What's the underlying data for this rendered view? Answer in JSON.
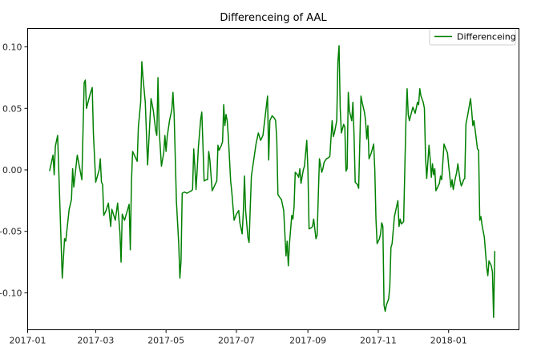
{
  "chart_data": {
    "type": "line",
    "title": "Differenceing of AAL",
    "xlabel": "",
    "ylabel": "",
    "x_axis": "date",
    "xlim": [
      "2017-01-01",
      "2018-03-03"
    ],
    "ylim": [
      -0.13,
      0.115
    ],
    "x_ticks": [
      "2017-01-01",
      "2017-03-01",
      "2017-05-01",
      "2017-07-01",
      "2017-09-01",
      "2017-11-01",
      "2018-01-01"
    ],
    "x_tick_labels": [
      "2017-01",
      "2017-03",
      "2017-05",
      "2017-07",
      "2017-09",
      "2017-11",
      "2018-01"
    ],
    "y_ticks": [
      -0.1,
      -0.05,
      0.0,
      0.05,
      0.1
    ],
    "y_tick_labels": [
      "-0.10",
      "-0.05",
      "0.00",
      "0.05",
      "0.10"
    ],
    "grid": false,
    "legend_position": "top-right",
    "series": [
      {
        "name": "Differenceing",
        "color": "#008000",
        "points": [
          [
            "2017-01-20",
            -0.001
          ],
          [
            "2017-01-23",
            0.012
          ],
          [
            "2017-01-24",
            -0.004
          ],
          [
            "2017-01-25",
            0.019
          ],
          [
            "2017-01-27",
            0.028
          ],
          [
            "2017-01-31",
            -0.088
          ],
          [
            "2017-02-02",
            -0.056
          ],
          [
            "2017-02-03",
            -0.058
          ],
          [
            "2017-02-06",
            -0.032
          ],
          [
            "2017-02-07",
            -0.028
          ],
          [
            "2017-02-08",
            -0.024
          ],
          [
            "2017-02-09",
            0.001
          ],
          [
            "2017-02-10",
            -0.014
          ],
          [
            "2017-02-13",
            0.012
          ],
          [
            "2017-02-17",
            -0.008
          ],
          [
            "2017-02-19",
            0.071
          ],
          [
            "2017-02-20",
            0.073
          ],
          [
            "2017-02-21",
            0.05
          ],
          [
            "2017-02-24",
            0.061
          ],
          [
            "2017-02-26",
            0.067
          ],
          [
            "2017-02-27",
            0.03
          ],
          [
            "2017-03-01",
            -0.01
          ],
          [
            "2017-03-04",
            0.0
          ],
          [
            "2017-03-05",
            0.009
          ],
          [
            "2017-03-06",
            -0.01
          ],
          [
            "2017-03-07",
            -0.012
          ],
          [
            "2017-03-08",
            -0.037
          ],
          [
            "2017-03-10",
            -0.033
          ],
          [
            "2017-03-12",
            -0.027
          ],
          [
            "2017-03-14",
            -0.046
          ],
          [
            "2017-03-15",
            -0.032
          ],
          [
            "2017-03-16",
            -0.035
          ],
          [
            "2017-03-18",
            -0.041
          ],
          [
            "2017-03-20",
            -0.027
          ],
          [
            "2017-03-22",
            -0.051
          ],
          [
            "2017-03-23",
            -0.075
          ],
          [
            "2017-03-24",
            -0.036
          ],
          [
            "2017-03-26",
            -0.041
          ],
          [
            "2017-03-30",
            -0.028
          ],
          [
            "2017-03-31",
            -0.065
          ],
          [
            "2017-04-01",
            -0.01
          ],
          [
            "2017-04-02",
            0.015
          ],
          [
            "2017-04-05",
            0.009
          ],
          [
            "2017-04-06",
            0.007
          ],
          [
            "2017-04-07",
            0.035
          ],
          [
            "2017-04-09",
            0.055
          ],
          [
            "2017-04-10",
            0.088
          ],
          [
            "2017-04-11",
            0.075
          ],
          [
            "2017-04-13",
            0.055
          ],
          [
            "2017-04-15",
            0.004
          ],
          [
            "2017-04-18",
            0.058
          ],
          [
            "2017-04-20",
            0.048
          ],
          [
            "2017-04-22",
            0.032
          ],
          [
            "2017-04-23",
            0.028
          ],
          [
            "2017-04-24",
            0.075
          ],
          [
            "2017-04-25",
            0.033
          ],
          [
            "2017-04-27",
            0.003
          ],
          [
            "2017-04-29",
            0.014
          ],
          [
            "2017-04-30",
            0.028
          ],
          [
            "2017-05-01",
            0.015
          ],
          [
            "2017-05-02",
            0.027
          ],
          [
            "2017-05-04",
            0.04
          ],
          [
            "2017-05-06",
            0.049
          ],
          [
            "2017-05-07",
            0.063
          ],
          [
            "2017-05-08",
            0.045
          ],
          [
            "2017-05-10",
            -0.026
          ],
          [
            "2017-05-12",
            -0.06
          ],
          [
            "2017-05-13",
            -0.088
          ],
          [
            "2017-05-14",
            -0.074
          ],
          [
            "2017-05-15",
            -0.019
          ],
          [
            "2017-05-17",
            -0.018
          ],
          [
            "2017-05-19",
            -0.019
          ],
          [
            "2017-05-21",
            -0.018
          ],
          [
            "2017-05-23",
            -0.017
          ],
          [
            "2017-05-24",
            -0.016
          ],
          [
            "2017-05-25",
            0.017
          ],
          [
            "2017-05-26",
            0.002
          ],
          [
            "2017-05-27",
            -0.016
          ],
          [
            "2017-05-28",
            0.0
          ],
          [
            "2017-05-29",
            0.018
          ],
          [
            "2017-05-31",
            0.041
          ],
          [
            "2017-06-01",
            0.047
          ],
          [
            "2017-06-02",
            0.02
          ],
          [
            "2017-06-03",
            -0.009
          ],
          [
            "2017-06-05",
            -0.008
          ],
          [
            "2017-06-06",
            -0.008
          ],
          [
            "2017-06-07",
            0.015
          ],
          [
            "2017-06-08",
            0.008
          ],
          [
            "2017-06-10",
            -0.017
          ],
          [
            "2017-06-13",
            -0.011
          ],
          [
            "2017-06-14",
            -0.009
          ],
          [
            "2017-06-15",
            0.02
          ],
          [
            "2017-06-16",
            0.016
          ],
          [
            "2017-06-18",
            0.02
          ],
          [
            "2017-06-19",
            0.023
          ],
          [
            "2017-06-20",
            0.053
          ],
          [
            "2017-06-21",
            0.036
          ],
          [
            "2017-06-22",
            0.045
          ],
          [
            "2017-06-23",
            0.04
          ],
          [
            "2017-06-24",
            0.027
          ],
          [
            "2017-06-26",
            -0.009
          ],
          [
            "2017-06-27",
            -0.018
          ],
          [
            "2017-06-29",
            -0.041
          ],
          [
            "2017-07-01",
            -0.036
          ],
          [
            "2017-07-03",
            -0.033
          ],
          [
            "2017-07-04",
            -0.043
          ],
          [
            "2017-07-06",
            -0.052
          ],
          [
            "2017-07-07",
            -0.034
          ],
          [
            "2017-07-08",
            -0.005
          ],
          [
            "2017-07-09",
            -0.033
          ],
          [
            "2017-07-11",
            -0.055
          ],
          [
            "2017-07-12",
            -0.059
          ],
          [
            "2017-07-13",
            -0.031
          ],
          [
            "2017-07-14",
            -0.005
          ],
          [
            "2017-07-16",
            0.008
          ],
          [
            "2017-07-18",
            0.021
          ],
          [
            "2017-07-20",
            0.03
          ],
          [
            "2017-07-21",
            0.027
          ],
          [
            "2017-07-22",
            0.024
          ],
          [
            "2017-07-24",
            0.028
          ],
          [
            "2017-07-26",
            0.044
          ],
          [
            "2017-07-27",
            0.052
          ],
          [
            "2017-07-28",
            0.06
          ],
          [
            "2017-07-29",
            0.008
          ],
          [
            "2017-07-30",
            0.04
          ],
          [
            "2017-08-01",
            0.044
          ],
          [
            "2017-08-03",
            0.042
          ],
          [
            "2017-08-04",
            0.04
          ],
          [
            "2017-08-05",
            0.025
          ],
          [
            "2017-08-06",
            -0.02
          ],
          [
            "2017-08-08",
            -0.023
          ],
          [
            "2017-08-09",
            -0.024
          ],
          [
            "2017-08-11",
            -0.033
          ],
          [
            "2017-08-13",
            -0.07
          ],
          [
            "2017-08-14",
            -0.058
          ],
          [
            "2017-08-15",
            -0.078
          ],
          [
            "2017-08-16",
            -0.06
          ],
          [
            "2017-08-18",
            -0.037
          ],
          [
            "2017-08-19",
            -0.04
          ],
          [
            "2017-08-20",
            -0.03
          ],
          [
            "2017-08-21",
            -0.002
          ],
          [
            "2017-08-23",
            -0.004
          ],
          [
            "2017-08-24",
            -0.006
          ],
          [
            "2017-08-25",
            0.001
          ],
          [
            "2017-08-26",
            -0.011
          ],
          [
            "2017-08-28",
            0.0
          ],
          [
            "2017-08-29",
            0.003
          ],
          [
            "2017-08-31",
            0.024
          ],
          [
            "2017-09-01",
            0.0
          ],
          [
            "2017-09-02",
            -0.048
          ],
          [
            "2017-09-04",
            -0.047
          ],
          [
            "2017-09-05",
            -0.046
          ],
          [
            "2017-09-06",
            -0.04
          ],
          [
            "2017-09-08",
            -0.056
          ],
          [
            "2017-09-09",
            -0.053
          ],
          [
            "2017-09-10",
            -0.021
          ],
          [
            "2017-09-11",
            0.009
          ],
          [
            "2017-09-13",
            -0.002
          ],
          [
            "2017-09-14",
            0.001
          ],
          [
            "2017-09-15",
            0.006
          ],
          [
            "2017-09-17",
            0.009
          ],
          [
            "2017-09-19",
            0.01
          ],
          [
            "2017-09-20",
            0.011
          ],
          [
            "2017-09-22",
            0.04
          ],
          [
            "2017-09-23",
            0.027
          ],
          [
            "2017-09-24",
            0.03
          ],
          [
            "2017-09-26",
            0.04
          ],
          [
            "2017-09-27",
            0.088
          ],
          [
            "2017-09-28",
            0.101
          ],
          [
            "2017-09-29",
            0.05
          ],
          [
            "2017-09-30",
            0.03
          ],
          [
            "2017-10-02",
            0.037
          ],
          [
            "2017-10-03",
            0.035
          ],
          [
            "2017-10-04",
            -0.001
          ],
          [
            "2017-10-05",
            0.001
          ],
          [
            "2017-10-06",
            0.063
          ],
          [
            "2017-10-07",
            0.048
          ],
          [
            "2017-10-09",
            0.04
          ],
          [
            "2017-10-10",
            0.055
          ],
          [
            "2017-10-11",
            0.028
          ],
          [
            "2017-10-12",
            -0.01
          ],
          [
            "2017-10-14",
            -0.012
          ],
          [
            "2017-10-15",
            -0.015
          ],
          [
            "2017-10-17",
            0.06
          ],
          [
            "2017-10-18",
            0.055
          ],
          [
            "2017-10-20",
            0.047
          ],
          [
            "2017-10-21",
            0.04
          ],
          [
            "2017-10-22",
            0.025
          ],
          [
            "2017-10-23",
            0.036
          ],
          [
            "2017-10-24",
            0.009
          ],
          [
            "2017-10-26",
            0.014
          ],
          [
            "2017-10-28",
            0.021
          ],
          [
            "2017-10-29",
            0.0
          ],
          [
            "2017-10-30",
            -0.04
          ],
          [
            "2017-10-31",
            -0.06
          ],
          [
            "2017-11-02",
            -0.056
          ],
          [
            "2017-11-03",
            -0.052
          ],
          [
            "2017-11-04",
            -0.043
          ],
          [
            "2017-11-05",
            -0.046
          ],
          [
            "2017-11-06",
            -0.11
          ],
          [
            "2017-11-07",
            -0.115
          ],
          [
            "2017-11-08",
            -0.11
          ],
          [
            "2017-11-10",
            -0.105
          ],
          [
            "2017-11-11",
            -0.095
          ],
          [
            "2017-11-12",
            -0.063
          ],
          [
            "2017-11-13",
            -0.06
          ],
          [
            "2017-11-15",
            -0.038
          ],
          [
            "2017-11-18",
            -0.025
          ],
          [
            "2017-11-19",
            -0.046
          ],
          [
            "2017-11-20",
            -0.04
          ],
          [
            "2017-11-21",
            -0.044
          ],
          [
            "2017-11-23",
            -0.042
          ],
          [
            "2017-11-24",
            0.0
          ],
          [
            "2017-11-25",
            0.04
          ],
          [
            "2017-11-26",
            0.066
          ],
          [
            "2017-11-27",
            0.045
          ],
          [
            "2017-11-28",
            0.04
          ],
          [
            "2017-12-01",
            0.051
          ],
          [
            "2017-12-03",
            0.046
          ],
          [
            "2017-12-05",
            0.055
          ],
          [
            "2017-12-06",
            0.053
          ],
          [
            "2017-12-07",
            0.066
          ],
          [
            "2017-12-08",
            0.06
          ],
          [
            "2017-12-10",
            0.055
          ],
          [
            "2017-12-11",
            0.05
          ],
          [
            "2017-12-12",
            0.01
          ],
          [
            "2017-12-13",
            -0.007
          ],
          [
            "2017-12-15",
            0.02
          ],
          [
            "2017-12-16",
            0.009
          ],
          [
            "2017-12-17",
            -0.006
          ],
          [
            "2017-12-18",
            0.005
          ],
          [
            "2017-12-19",
            -0.004
          ],
          [
            "2017-12-20",
            0.001
          ],
          [
            "2017-12-21",
            -0.017
          ],
          [
            "2017-12-23",
            -0.013
          ],
          [
            "2017-12-24",
            -0.011
          ],
          [
            "2017-12-25",
            -0.005
          ],
          [
            "2017-12-26",
            -0.008
          ],
          [
            "2017-12-28",
            0.021
          ],
          [
            "2017-12-30",
            0.016
          ],
          [
            "2017-12-31",
            0.014
          ],
          [
            "2018-01-01",
            0.004
          ],
          [
            "2018-01-03",
            -0.014
          ],
          [
            "2018-01-04",
            -0.008
          ],
          [
            "2018-01-05",
            -0.016
          ],
          [
            "2018-01-07",
            -0.006
          ],
          [
            "2018-01-08",
            -0.002
          ],
          [
            "2018-01-09",
            0.005
          ],
          [
            "2018-01-10",
            -0.002
          ],
          [
            "2018-01-11",
            -0.009
          ],
          [
            "2018-01-12",
            -0.013
          ],
          [
            "2018-01-13",
            -0.011
          ],
          [
            "2018-01-14",
            -0.008
          ],
          [
            "2018-01-15",
            -0.007
          ],
          [
            "2018-01-16",
            0.037
          ],
          [
            "2018-01-18",
            0.047
          ],
          [
            "2018-01-20",
            0.058
          ],
          [
            "2018-01-21",
            0.048
          ],
          [
            "2018-01-22",
            0.036
          ],
          [
            "2018-01-23",
            0.04
          ],
          [
            "2018-01-25",
            0.025
          ],
          [
            "2018-01-26",
            0.017
          ],
          [
            "2018-01-27",
            0.016
          ],
          [
            "2018-01-28",
            -0.041
          ],
          [
            "2018-01-29",
            -0.038
          ],
          [
            "2018-01-30",
            -0.045
          ],
          [
            "2018-02-01",
            -0.055
          ],
          [
            "2018-02-03",
            -0.079
          ],
          [
            "2018-02-04",
            -0.086
          ],
          [
            "2018-02-05",
            -0.074
          ],
          [
            "2018-02-07",
            -0.078
          ],
          [
            "2018-02-08",
            -0.083
          ],
          [
            "2018-02-09",
            -0.12
          ],
          [
            "2018-02-10",
            -0.066
          ]
        ]
      }
    ]
  }
}
